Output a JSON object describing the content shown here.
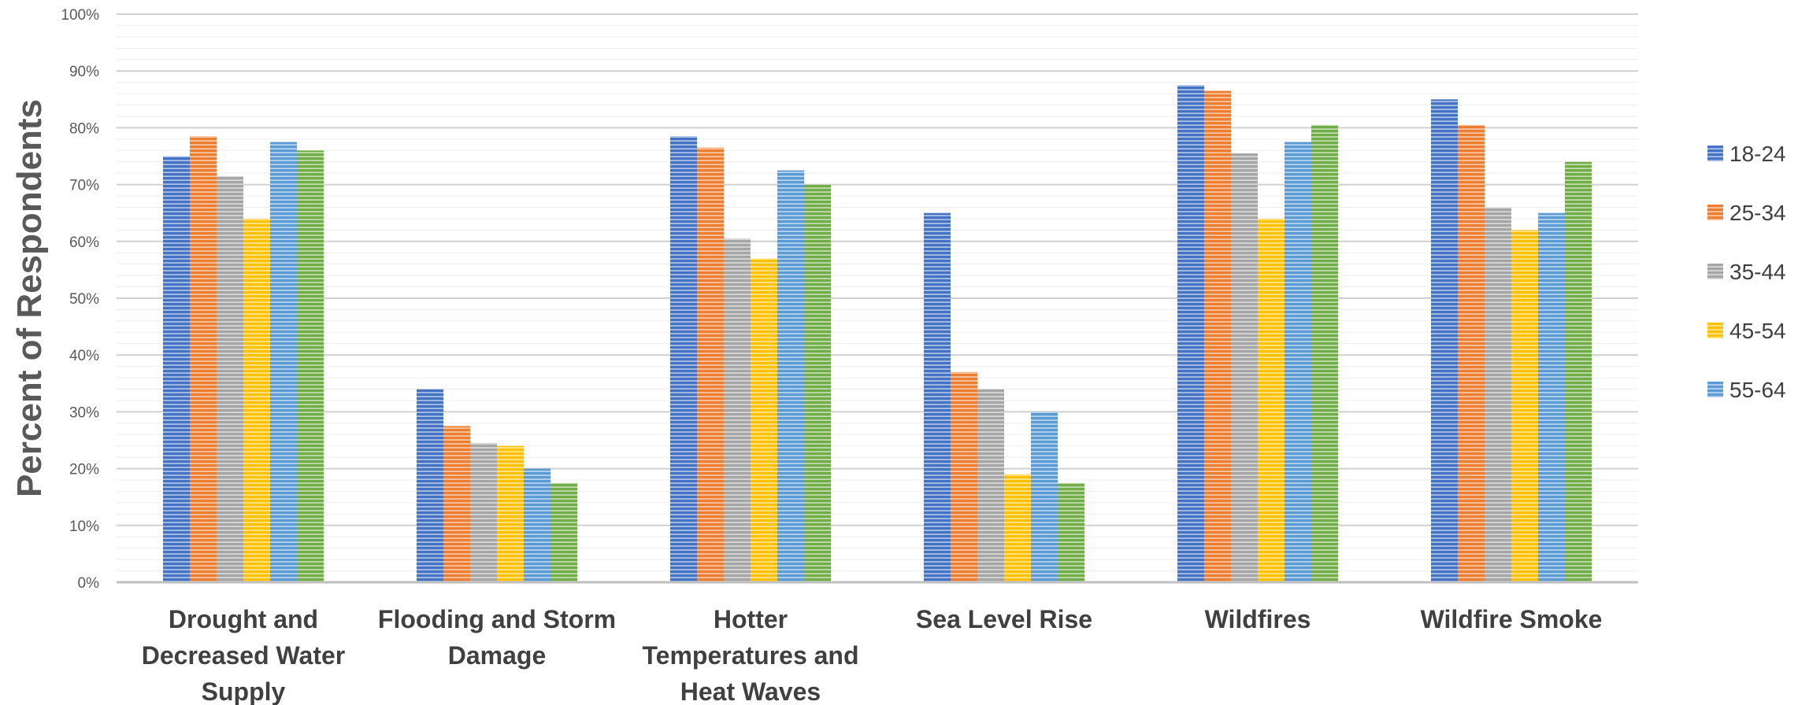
{
  "chart_data": {
    "type": "bar",
    "title": "",
    "xlabel": "",
    "ylabel": "Percent of Respondents",
    "ylim": [
      0,
      100
    ],
    "y_tick_step": 10,
    "y_minor_step": 2,
    "y_tick_format": "percent",
    "grid": true,
    "legend_position": "right",
    "categories": [
      [
        "Drought and",
        "Decreased Water",
        "Supply"
      ],
      [
        "Flooding and Storm",
        "Damage"
      ],
      [
        "Hotter",
        "Temperatures and",
        "Heat Waves"
      ],
      [
        "Sea Level Rise"
      ],
      [
        "Wildfires"
      ],
      [
        "Wildfire Smoke"
      ]
    ],
    "series": [
      {
        "name": "18-24",
        "color": "#4472C4",
        "values": [
          75,
          34,
          78.5,
          65,
          87.5,
          85
        ]
      },
      {
        "name": "25-34",
        "color": "#ED7D31",
        "values": [
          78.5,
          27.5,
          76.5,
          37,
          86.5,
          80.5
        ]
      },
      {
        "name": "35-44",
        "color": "#A5A5A5",
        "values": [
          71.5,
          24.5,
          60.5,
          34,
          75.5,
          66
        ]
      },
      {
        "name": "45-54",
        "color": "#FFC000",
        "values": [
          64,
          24,
          57,
          19,
          64,
          62
        ]
      },
      {
        "name": "55-64",
        "color": "#5B9BD5",
        "values": [
          77.5,
          20,
          72.5,
          30,
          77.5,
          65
        ]
      },
      {
        "name": "",
        "color": "#70AD47",
        "values": [
          76,
          17.5,
          70,
          17.5,
          80.5,
          74
        ]
      }
    ]
  }
}
